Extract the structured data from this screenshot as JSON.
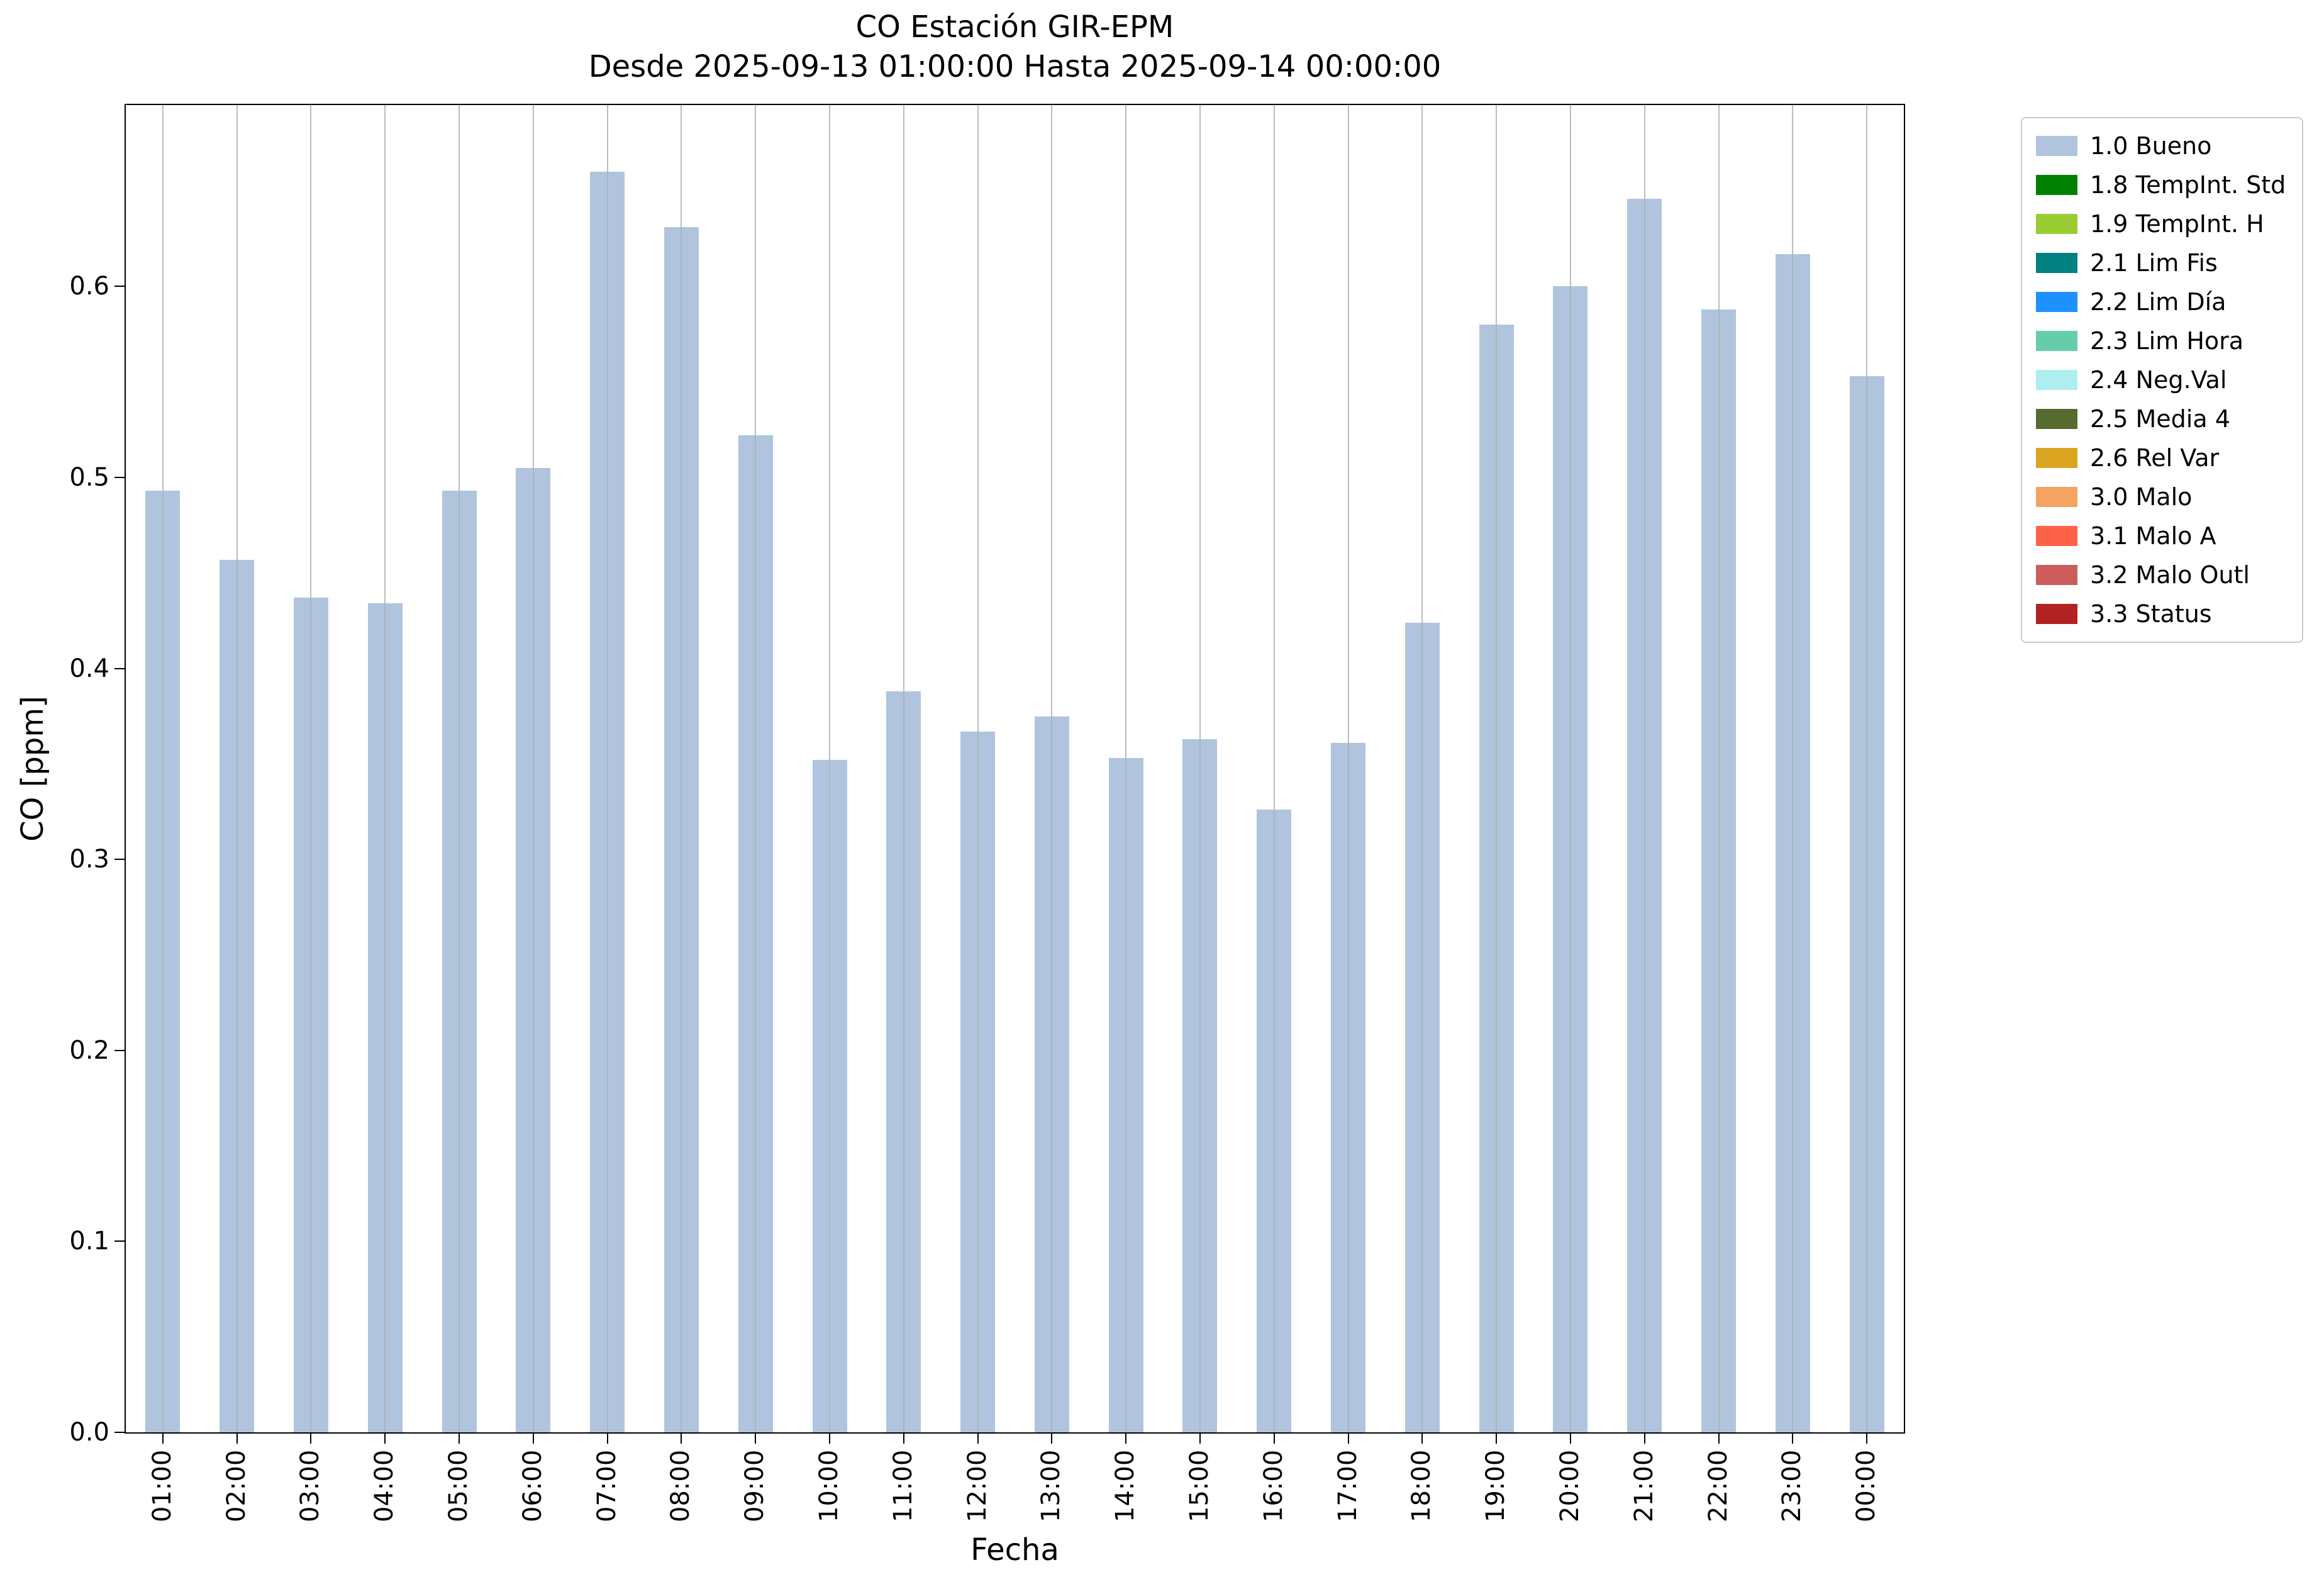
{
  "figure": {
    "background": "#ffffff"
  },
  "chart_data": {
    "type": "bar",
    "title": "CO Estación GIR-EPM",
    "subtitle": "Desde 2025-09-13 01:00:00 Hasta 2025-09-14 00:00:00",
    "xlabel": "Fecha",
    "ylabel": "CO [ppm]",
    "categories": [
      "01:00",
      "02:00",
      "03:00",
      "04:00",
      "05:00",
      "06:00",
      "07:00",
      "08:00",
      "09:00",
      "10:00",
      "11:00",
      "12:00",
      "13:00",
      "14:00",
      "15:00",
      "16:00",
      "17:00",
      "18:00",
      "19:00",
      "20:00",
      "21:00",
      "22:00",
      "23:00",
      "00:00"
    ],
    "values": [
      0.493,
      0.457,
      0.437,
      0.434,
      0.493,
      0.505,
      0.66,
      0.631,
      0.522,
      0.352,
      0.388,
      0.367,
      0.375,
      0.353,
      0.363,
      0.326,
      0.361,
      0.424,
      0.58,
      0.6,
      0.646,
      0.588,
      0.617,
      0.553
    ],
    "series_name": "1.0 Bueno",
    "bar_color": "#b0c4de",
    "grid": "vertical",
    "grid_color": "#b0b0b0",
    "ylim": [
      0,
      0.695
    ],
    "yticks": [
      0.0,
      0.1,
      0.2,
      0.3,
      0.4,
      0.5,
      0.6
    ],
    "ytick_labels": [
      "0.0",
      "0.1",
      "0.2",
      "0.3",
      "0.4",
      "0.5",
      "0.6"
    ],
    "legend": {
      "position": "right",
      "entries": [
        {
          "label": "1.0 Bueno",
          "color": "#b0c4de"
        },
        {
          "label": "1.8 TempInt. Std",
          "color": "#008000"
        },
        {
          "label": "1.9 TempInt. H",
          "color": "#9acd32"
        },
        {
          "label": "2.1 Lim Fis",
          "color": "#008080"
        },
        {
          "label": "2.2 Lim Día",
          "color": "#1e90ff"
        },
        {
          "label": "2.3 Lim Hora",
          "color": "#66cdaa"
        },
        {
          "label": "2.4 Neg.Val",
          "color": "#afeeee"
        },
        {
          "label": "2.5 Media 4",
          "color": "#556b2f"
        },
        {
          "label": "2.6 Rel Var",
          "color": "#daa520"
        },
        {
          "label": "3.0 Malo",
          "color": "#f4a460"
        },
        {
          "label": "3.1 Malo A",
          "color": "#ff6347"
        },
        {
          "label": "3.2 Malo Outl",
          "color": "#cd5c5c"
        },
        {
          "label": "3.3 Status",
          "color": "#b22222"
        }
      ]
    }
  }
}
